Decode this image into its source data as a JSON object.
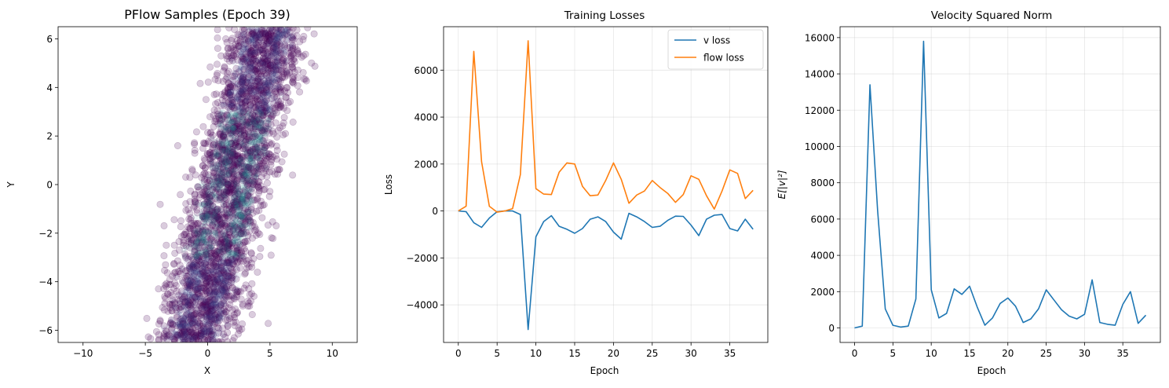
{
  "chart_data": [
    {
      "type": "scatter",
      "title": "PFlow Samples (Epoch 39)",
      "xlabel": "X",
      "ylabel": "Y",
      "xlim": [
        -12,
        12
      ],
      "ylim": [
        -6.5,
        6.5
      ],
      "xticks": [
        -10,
        -5,
        0,
        5,
        10
      ],
      "yticks": [
        -6,
        -4,
        -2,
        0,
        2,
        4,
        6
      ],
      "grid": false,
      "point_color": "#440154",
      "density_color": "#21918c",
      "point_alpha": 0.2,
      "description_of_distribution": "two parallel diagonal bands, each y ≈ 2.2·(x - c) with c ≈ 0.8 and c ≈ 3.0, spread ±2.8"
    },
    {
      "type": "line",
      "title": "Training Losses",
      "xlabel": "Epoch",
      "ylabel": "Loss",
      "xlim": [
        -1.9,
        39.9
      ],
      "ylim": [
        -5600,
        7850
      ],
      "xticks": [
        0,
        5,
        10,
        15,
        20,
        25,
        30,
        35
      ],
      "yticks": [
        -4000,
        -2000,
        0,
        2000,
        4000,
        6000
      ],
      "grid": true,
      "legend": "top-right",
      "x": [
        0,
        1,
        2,
        3,
        4,
        5,
        6,
        7,
        8,
        9,
        10,
        11,
        12,
        13,
        14,
        15,
        16,
        17,
        18,
        19,
        20,
        21,
        22,
        23,
        24,
        25,
        26,
        27,
        28,
        29,
        30,
        31,
        32,
        33,
        34,
        35,
        36,
        37,
        38
      ],
      "series": [
        {
          "name": "v loss",
          "color": "#1f77b4",
          "values": [
            0,
            -30,
            -500,
            -700,
            -300,
            -30,
            0,
            0,
            -150,
            -5050,
            -1100,
            -450,
            -200,
            -650,
            -780,
            -950,
            -750,
            -350,
            -250,
            -450,
            -900,
            -1200,
            -100,
            -250,
            -450,
            -700,
            -650,
            -400,
            -220,
            -230,
            -600,
            -1050,
            -350,
            -180,
            -150,
            -750,
            -850,
            -350,
            -780
          ]
        },
        {
          "name": "flow loss",
          "color": "#ff7f0e",
          "values": [
            0,
            200,
            6800,
            2100,
            200,
            -50,
            0,
            100,
            1550,
            7250,
            950,
            720,
            700,
            1650,
            2050,
            2000,
            1050,
            650,
            680,
            1300,
            2050,
            1350,
            330,
            680,
            850,
            1300,
            1000,
            750,
            370,
            700,
            1500,
            1350,
            650,
            80,
            850,
            1750,
            1600,
            530,
            880
          ]
        }
      ]
    },
    {
      "type": "line",
      "title": "Velocity Squared Norm",
      "xlabel": "Epoch",
      "ylabel": "E[|v|²]",
      "xlim": [
        -1.9,
        39.9
      ],
      "ylim": [
        -800,
        16600
      ],
      "xticks": [
        0,
        5,
        10,
        15,
        20,
        25,
        30,
        35
      ],
      "yticks": [
        0,
        2000,
        4000,
        6000,
        8000,
        10000,
        12000,
        14000,
        16000
      ],
      "grid": true,
      "x": [
        0,
        1,
        2,
        3,
        4,
        5,
        6,
        7,
        8,
        9,
        10,
        11,
        12,
        13,
        14,
        15,
        16,
        17,
        18,
        19,
        20,
        21,
        22,
        23,
        24,
        25,
        26,
        27,
        28,
        29,
        30,
        31,
        32,
        33,
        34,
        35,
        36,
        37,
        38
      ],
      "series": [
        {
          "color": "#1f77b4",
          "values": [
            0,
            100,
            13400,
            6500,
            1050,
            150,
            50,
            100,
            1600,
            15800,
            2100,
            550,
            800,
            2150,
            1850,
            2300,
            1150,
            150,
            550,
            1350,
            1650,
            1200,
            300,
            500,
            1050,
            2100,
            1550,
            1000,
            650,
            500,
            750,
            2650,
            300,
            200,
            150,
            1300,
            2000,
            250,
            700
          ]
        }
      ]
    }
  ]
}
